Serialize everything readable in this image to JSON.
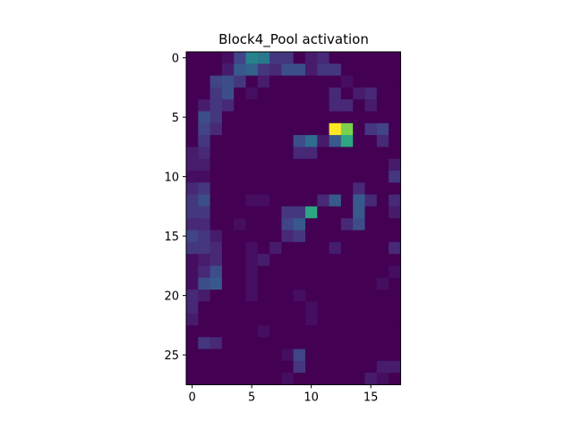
{
  "chart_data": {
    "type": "heatmap",
    "title": "Block4_Pool activation",
    "xlabel": "",
    "ylabel": "",
    "colormap": "viridis",
    "value_range": [
      0,
      1
    ],
    "n_rows": 28,
    "n_cols": 18,
    "x_ticks": [
      0,
      5,
      10,
      15
    ],
    "x_tick_labels": [
      "0",
      "5",
      "10",
      "15"
    ],
    "y_ticks": [
      0,
      5,
      10,
      15,
      20,
      25
    ],
    "y_tick_labels": [
      "0",
      "5",
      "10",
      "15",
      "20",
      "25"
    ],
    "grid": false,
    "values": [
      [
        0,
        0,
        0,
        0.05,
        0.25,
        0.55,
        0.5,
        0.2,
        0.2,
        0,
        0.1,
        0.15,
        0,
        0,
        0,
        0,
        0,
        0
      ],
      [
        0,
        0,
        0,
        0.1,
        0.35,
        0.4,
        0.2,
        0.15,
        0.3,
        0.3,
        0.1,
        0.2,
        0.2,
        0,
        0,
        0,
        0,
        0
      ],
      [
        0,
        0,
        0.25,
        0.3,
        0.2,
        0,
        0.1,
        0,
        0,
        0,
        0,
        0,
        0,
        0.05,
        0,
        0,
        0,
        0
      ],
      [
        0,
        0,
        0.2,
        0.3,
        0,
        0.05,
        0,
        0,
        0,
        0,
        0,
        0,
        0.15,
        0,
        0.1,
        0.15,
        0,
        0
      ],
      [
        0,
        0.1,
        0.2,
        0.15,
        0,
        0,
        0,
        0,
        0,
        0,
        0,
        0,
        0.15,
        0.15,
        0,
        0.1,
        0,
        0
      ],
      [
        0,
        0.3,
        0.2,
        0,
        0,
        0,
        0,
        0,
        0,
        0,
        0,
        0,
        0,
        0,
        0,
        0,
        0,
        0
      ],
      [
        0,
        0.25,
        0.15,
        0,
        0,
        0,
        0,
        0,
        0,
        0,
        0,
        0,
        1,
        0.85,
        0,
        0.2,
        0.25,
        0
      ],
      [
        0,
        0.2,
        0,
        0,
        0,
        0,
        0,
        0,
        0,
        0.3,
        0.45,
        0.1,
        0.35,
        0.7,
        0,
        0,
        0.15,
        0
      ],
      [
        0.1,
        0.15,
        0,
        0,
        0,
        0,
        0,
        0,
        0,
        0.15,
        0.15,
        0,
        0,
        0,
        0,
        0,
        0,
        0
      ],
      [
        0.1,
        0.1,
        0,
        0,
        0,
        0,
        0,
        0,
        0,
        0,
        0,
        0,
        0,
        0,
        0,
        0,
        0,
        0.1
      ],
      [
        0.05,
        0.05,
        0,
        0,
        0,
        0,
        0,
        0,
        0,
        0,
        0,
        0,
        0,
        0,
        0,
        0,
        0,
        0.2
      ],
      [
        0.15,
        0.2,
        0,
        0,
        0,
        0,
        0,
        0,
        0,
        0,
        0,
        0,
        0,
        0,
        0.15,
        0,
        0,
        0
      ],
      [
        0.2,
        0.3,
        0,
        0,
        0,
        0.05,
        0.05,
        0,
        0,
        0,
        0,
        0.15,
        0.35,
        0,
        0.35,
        0.15,
        0,
        0.15
      ],
      [
        0.2,
        0.2,
        0,
        0,
        0,
        0,
        0,
        0,
        0.2,
        0.2,
        0.7,
        0,
        0,
        0,
        0.35,
        0,
        0,
        0.1
      ],
      [
        0.15,
        0.15,
        0,
        0,
        0.05,
        0,
        0,
        0,
        0.25,
        0.35,
        0,
        0,
        0,
        0.15,
        0.3,
        0,
        0,
        0
      ],
      [
        0.25,
        0.2,
        0.1,
        0,
        0,
        0,
        0,
        0,
        0.15,
        0.2,
        0,
        0,
        0,
        0,
        0,
        0,
        0,
        0
      ],
      [
        0.2,
        0.2,
        0.15,
        0,
        0,
        0.05,
        0,
        0.1,
        0,
        0,
        0,
        0,
        0.1,
        0,
        0,
        0,
        0,
        0.15
      ],
      [
        0.05,
        0.1,
        0.15,
        0,
        0,
        0.05,
        0.1,
        0,
        0,
        0,
        0,
        0,
        0,
        0,
        0,
        0,
        0,
        0
      ],
      [
        0.05,
        0.15,
        0.3,
        0,
        0,
        0.05,
        0,
        0,
        0,
        0,
        0,
        0,
        0,
        0,
        0,
        0,
        0,
        0.05
      ],
      [
        0.05,
        0.3,
        0.35,
        0,
        0,
        0.05,
        0,
        0,
        0,
        0,
        0,
        0,
        0,
        0,
        0,
        0,
        0.05,
        0
      ],
      [
        0.15,
        0.1,
        0,
        0,
        0,
        0.05,
        0,
        0,
        0,
        0.05,
        0,
        0,
        0,
        0,
        0,
        0,
        0,
        0
      ],
      [
        0.15,
        0,
        0,
        0,
        0,
        0,
        0,
        0,
        0,
        0,
        0.05,
        0,
        0,
        0,
        0,
        0,
        0,
        0
      ],
      [
        0.1,
        0,
        0,
        0,
        0,
        0,
        0,
        0,
        0,
        0,
        0.05,
        0,
        0,
        0,
        0,
        0,
        0,
        0
      ],
      [
        0,
        0,
        0,
        0,
        0,
        0,
        0.05,
        0,
        0,
        0,
        0,
        0,
        0,
        0,
        0,
        0,
        0,
        0
      ],
      [
        0,
        0.2,
        0.15,
        0,
        0,
        0,
        0,
        0,
        0,
        0,
        0,
        0,
        0,
        0,
        0,
        0,
        0,
        0
      ],
      [
        0,
        0,
        0,
        0,
        0,
        0,
        0,
        0,
        0.05,
        0.25,
        0,
        0,
        0,
        0,
        0,
        0,
        0,
        0
      ],
      [
        0,
        0,
        0,
        0,
        0,
        0,
        0,
        0,
        0,
        0.2,
        0,
        0,
        0,
        0,
        0,
        0,
        0.1,
        0.1
      ],
      [
        0,
        0,
        0,
        0,
        0,
        0,
        0,
        0,
        0.05,
        0,
        0,
        0,
        0,
        0,
        0,
        0.1,
        0.05,
        0
      ]
    ]
  }
}
